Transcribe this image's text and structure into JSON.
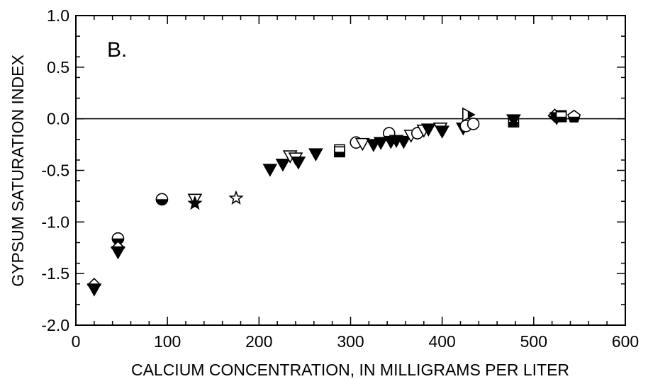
{
  "chart_data": {
    "type": "scatter",
    "panel_label": "B.",
    "xlabel": "CALCIUM CONCENTRATION, IN MILLIGRAMS PER LITER",
    "ylabel": "GYPSUM SATURATION INDEX",
    "xlim": [
      0,
      600
    ],
    "ylim": [
      -2.0,
      1.0
    ],
    "xticks": [
      0,
      100,
      200,
      300,
      400,
      500,
      600
    ],
    "xtick_labels": [
      "0",
      "100",
      "200",
      "300",
      "400",
      "500",
      "600"
    ],
    "yticks": [
      1.0,
      0.5,
      0.0,
      -0.5,
      -1.0,
      -1.5,
      -2.0
    ],
    "ytick_labels": [
      "1.0",
      "0.5",
      "0.0",
      "-0.5",
      "-1.0",
      "-1.5",
      "-2.0"
    ],
    "reference_line_y": 0.0,
    "grid": false,
    "legend": "none",
    "points": [
      {
        "x": 20,
        "y": -1.61,
        "marker": "diamond-half"
      },
      {
        "x": 20,
        "y": -1.65,
        "marker": "tri-down-filled"
      },
      {
        "x": 46,
        "y": -1.16,
        "marker": "circle-half"
      },
      {
        "x": 46,
        "y": -1.25,
        "marker": "diamond-half"
      },
      {
        "x": 46,
        "y": -1.29,
        "marker": "tri-down-filled"
      },
      {
        "x": 94,
        "y": -0.78,
        "marker": "circle-half"
      },
      {
        "x": 130,
        "y": -0.78,
        "marker": "tri-down-open"
      },
      {
        "x": 130,
        "y": -0.82,
        "marker": "star-filled"
      },
      {
        "x": 175,
        "y": -0.77,
        "marker": "star-open"
      },
      {
        "x": 212,
        "y": -0.49,
        "marker": "tri-down-filled"
      },
      {
        "x": 226,
        "y": -0.44,
        "marker": "tri-down-filled"
      },
      {
        "x": 234,
        "y": -0.36,
        "marker": "tri-down-open"
      },
      {
        "x": 240,
        "y": -0.38,
        "marker": "tri-down-open"
      },
      {
        "x": 243,
        "y": -0.42,
        "marker": "tri-down-filled"
      },
      {
        "x": 262,
        "y": -0.34,
        "marker": "tri-down-filled"
      },
      {
        "x": 288,
        "y": -0.3,
        "marker": "square-half"
      },
      {
        "x": 288,
        "y": -0.32,
        "marker": "square-half"
      },
      {
        "x": 306,
        "y": -0.23,
        "marker": "circle-open"
      },
      {
        "x": 313,
        "y": -0.24,
        "marker": "tri-down-open"
      },
      {
        "x": 325,
        "y": -0.25,
        "marker": "tri-down-filled"
      },
      {
        "x": 333,
        "y": -0.23,
        "marker": "tri-down-filled"
      },
      {
        "x": 342,
        "y": -0.14,
        "marker": "circle-open"
      },
      {
        "x": 344,
        "y": -0.22,
        "marker": "tri-down-filled"
      },
      {
        "x": 350,
        "y": -0.21,
        "marker": "tri-down-filled"
      },
      {
        "x": 358,
        "y": -0.22,
        "marker": "tri-down-filled"
      },
      {
        "x": 366,
        "y": -0.16,
        "marker": "tri-down-open"
      },
      {
        "x": 373,
        "y": -0.14,
        "marker": "circle-open"
      },
      {
        "x": 380,
        "y": -0.11,
        "marker": "tri-down-open"
      },
      {
        "x": 385,
        "y": -0.1,
        "marker": "tri-down-filled"
      },
      {
        "x": 398,
        "y": -0.09,
        "marker": "tri-down-open"
      },
      {
        "x": 400,
        "y": -0.12,
        "marker": "tri-down-filled"
      },
      {
        "x": 423,
        "y": -0.09,
        "marker": "tri-down-filled"
      },
      {
        "x": 426,
        "y": -0.07,
        "marker": "circle-open"
      },
      {
        "x": 428,
        "y": 0.04,
        "marker": "tri-right-half"
      },
      {
        "x": 434,
        "y": -0.05,
        "marker": "circle-open"
      },
      {
        "x": 478,
        "y": -0.03,
        "marker": "square-half"
      },
      {
        "x": 478,
        "y": -0.01,
        "marker": "tri-down-filled"
      },
      {
        "x": 523,
        "y": 0.03,
        "marker": "diamond-half"
      },
      {
        "x": 525,
        "y": 0.01,
        "marker": "tri-down-filled"
      },
      {
        "x": 530,
        "y": 0.03,
        "marker": "square-half"
      },
      {
        "x": 530,
        "y": 0.02,
        "marker": "square-half"
      },
      {
        "x": 544,
        "y": 0.02,
        "marker": "pentagon-half"
      }
    ]
  }
}
